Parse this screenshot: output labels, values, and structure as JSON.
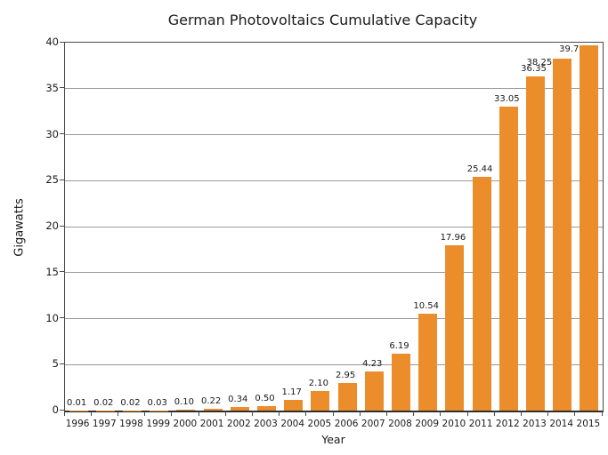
{
  "chart_data": {
    "type": "bar",
    "title": "German Photovoltaics Cumulative Capacity",
    "xlabel": "Year",
    "ylabel": "Gigawatts",
    "categories": [
      "1996",
      "1997",
      "1998",
      "1999",
      "2000",
      "2001",
      "2002",
      "2003",
      "2004",
      "2005",
      "2006",
      "2007",
      "2008",
      "2009",
      "2010",
      "2011",
      "2012",
      "2013",
      "2014",
      "2015"
    ],
    "values": [
      0.01,
      0.02,
      0.02,
      0.03,
      0.1,
      0.22,
      0.34,
      0.5,
      1.17,
      2.1,
      2.95,
      4.23,
      6.19,
      10.54,
      17.96,
      25.44,
      33.05,
      36.35,
      38.25,
      39.7
    ],
    "value_labels": [
      "0.01",
      "0.02",
      "0.02",
      "0.03",
      "0.10",
      "0.22",
      "0.34",
      "0.50",
      "1.17",
      "2.10",
      "2.95",
      "4.23",
      "6.19",
      "10.54",
      "17.96",
      "25.44",
      "33.05",
      "36.35",
      "38.25",
      "39.7"
    ],
    "ylim": [
      0,
      40
    ],
    "yticks": [
      0,
      5,
      10,
      15,
      20,
      25,
      30,
      35,
      40
    ],
    "grid": "horizontal",
    "legend": "none",
    "bar_color": "#EC8D2C"
  },
  "colors": {
    "bar": "#EC8D2C",
    "grid": "#999999",
    "axis": "#4a4a4a",
    "text": "#1a1a1a",
    "background": "#ffffff"
  }
}
